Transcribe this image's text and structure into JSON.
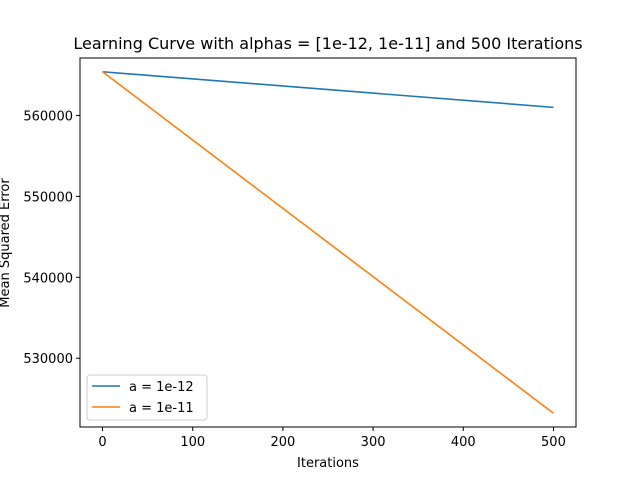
{
  "chart_data": {
    "type": "line",
    "title": "Learning Curve with alphas = [1e-12, 1e-11] and 500 Iterations",
    "xlabel": "Iterations",
    "ylabel": "Mean Squared Error",
    "xlim": [
      -25,
      525
    ],
    "ylim": [
      521500,
      567100
    ],
    "xticks": [
      0,
      100,
      200,
      300,
      400,
      500
    ],
    "yticks": [
      530000,
      540000,
      550000,
      560000
    ],
    "grid": false,
    "legend_position": "lower-left",
    "series": [
      {
        "name": "a = 1e-12",
        "color": "#1f77b4",
        "x": [
          0,
          500
        ],
        "y": [
          565400,
          561000
        ]
      },
      {
        "name": "a = 1e-11",
        "color": "#ff7f0e",
        "x": [
          0,
          500
        ],
        "y": [
          565400,
          523200
        ]
      }
    ]
  }
}
